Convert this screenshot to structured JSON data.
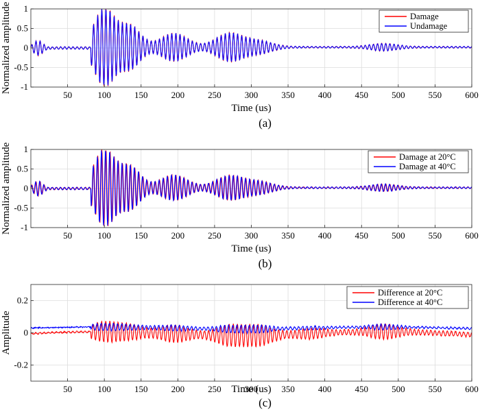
{
  "chart_data": [
    {
      "type": "line",
      "panel_label": "(a)",
      "xlabel": "Time (us)",
      "ylabel": "Normalized amplitude",
      "xlim": [
        0,
        600
      ],
      "ylim": [
        -1,
        1
      ],
      "xticks": [
        50,
        100,
        150,
        200,
        250,
        300,
        350,
        400,
        450,
        500,
        550,
        600
      ],
      "yticks": [
        -1,
        -0.5,
        0,
        0.5,
        1
      ],
      "yticklabels": [
        "-1",
        "-0.5",
        "0",
        "0.5",
        "1"
      ],
      "grid": true,
      "legend_position": "top-right",
      "series": [
        {
          "name": "Damage",
          "color": "#ff0000"
        },
        {
          "name": "Undamage",
          "color": "#0000ff"
        }
      ],
      "envelope_peaks": [
        [
          10,
          0.18
        ],
        [
          100,
          1.0
        ],
        [
          135,
          0.55
        ],
        [
          195,
          0.35
        ],
        [
          270,
          0.35
        ],
        [
          310,
          0.15
        ],
        [
          480,
          0.08
        ]
      ]
    },
    {
      "type": "line",
      "panel_label": "(b)",
      "xlabel": "Time (us)",
      "ylabel": "Normalized amplitude",
      "xlim": [
        0,
        600
      ],
      "ylim": [
        -1,
        1
      ],
      "xticks": [
        50,
        100,
        150,
        200,
        250,
        300,
        350,
        400,
        450,
        500,
        550,
        600
      ],
      "yticks": [
        -1,
        -0.5,
        0,
        0.5,
        1
      ],
      "yticklabels": [
        "-1",
        "-0.5",
        "0",
        "0.5",
        "1"
      ],
      "grid": true,
      "legend_position": "top-right",
      "series": [
        {
          "name": "Damage at 20°C",
          "color": "#ff0000"
        },
        {
          "name": "Damage at 40°C",
          "color": "#0000ff"
        }
      ],
      "envelope_peaks": [
        [
          10,
          0.18
        ],
        [
          100,
          1.0
        ],
        [
          135,
          0.55
        ],
        [
          195,
          0.32
        ],
        [
          270,
          0.3
        ],
        [
          310,
          0.15
        ],
        [
          480,
          0.08
        ]
      ]
    },
    {
      "type": "line",
      "panel_label": "(c)",
      "xlabel": "Time (us)",
      "ylabel": "Amplitude",
      "xlim": [
        0,
        600
      ],
      "ylim": [
        -0.3,
        0.3
      ],
      "xticks": [
        50,
        100,
        150,
        200,
        250,
        300,
        350,
        400,
        450,
        500,
        550,
        600
      ],
      "yticks": [
        -0.2,
        0,
        0.2
      ],
      "yticklabels": [
        "-0.2",
        "0",
        "0.2"
      ],
      "grid": true,
      "legend_position": "top-right",
      "series": [
        {
          "name": "Difference at 20°C",
          "color": "#ff0000",
          "baseline": -0.005
        },
        {
          "name": "Difference at 40°C",
          "color": "#0000ff",
          "baseline": 0.03
        }
      ]
    }
  ]
}
